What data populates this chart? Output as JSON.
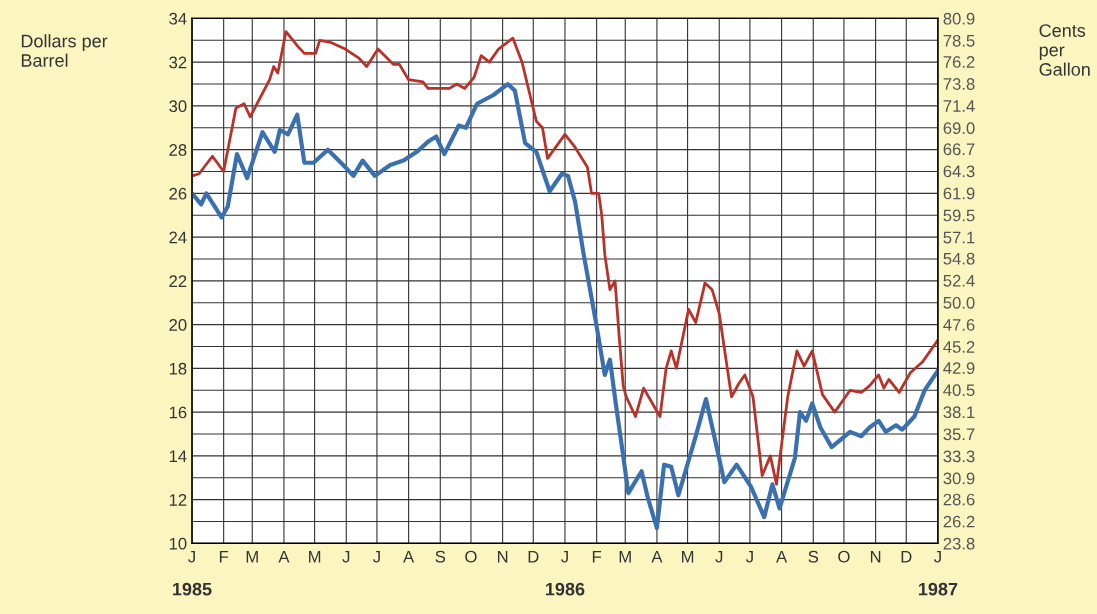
{
  "chart_data": {
    "type": "line",
    "ylabel": "Dollars per\nBarrel",
    "y2label": "Cents\nper\nGallon",
    "grid": true,
    "annotations": [
      "J",
      "F",
      "M",
      "A",
      "M",
      "J",
      "J",
      "A",
      "S",
      "O",
      "N",
      "D",
      "J",
      "F",
      "M",
      "A",
      "M",
      "J",
      "J",
      "A",
      "S",
      "O",
      "N",
      "D",
      "J"
    ],
    "xlim": [
      "1985-01-01",
      "1987-01-01"
    ],
    "xticks": [
      "1985",
      {
        "value": "1985-02",
        "label": null
      },
      {
        "value": "1985-03",
        "label": null
      },
      {
        "value": "1985-04",
        "label": null
      },
      {
        "value": "1985-05",
        "label": null
      },
      {
        "value": "1985-06",
        "label": null
      },
      {
        "value": "1985-07",
        "label": null
      },
      {
        "value": "1985-08",
        "label": null
      },
      {
        "value": "1985-09",
        "label": null
      },
      {
        "value": "1985-10",
        "label": null
      },
      {
        "value": "1985-11",
        "label": null
      },
      {
        "value": "1985-12",
        "label": null
      },
      "1986",
      {
        "value": "1986-02",
        "label": null
      },
      {
        "value": "1986-03",
        "label": null
      },
      {
        "value": "1986-04",
        "label": null
      },
      {
        "value": "1986-05",
        "label": null
      },
      {
        "value": "1986-06",
        "label": null
      },
      {
        "value": "1986-07",
        "label": null
      },
      {
        "value": "1986-08",
        "label": null
      },
      {
        "value": "1986-09",
        "label": null
      },
      {
        "value": "1986-10",
        "label": null
      },
      {
        "value": "1986-11",
        "label": null
      },
      {
        "value": "1986-12",
        "label": null
      },
      "1987"
    ],
    "ylim": [
      10,
      34
    ],
    "yticks": [
      10,
      {
        "value": 11,
        "label": null
      },
      12,
      {
        "value": 13,
        "label": null
      },
      14,
      {
        "value": 15,
        "label": null
      },
      16,
      {
        "value": 17,
        "label": null
      },
      18,
      {
        "value": 19,
        "label": null
      },
      20,
      {
        "value": 21,
        "label": null
      },
      22,
      {
        "value": 23,
        "label": null
      },
      24,
      {
        "value": 25,
        "label": null
      },
      26,
      {
        "value": 27,
        "label": null
      },
      28,
      {
        "value": 29,
        "label": null
      },
      30,
      {
        "value": 31,
        "label": null
      },
      32,
      {
        "value": 33,
        "label": null
      },
      34
    ],
    "y2lim": [
      23.8,
      80.9
    ],
    "y2ticks": [
      23.8,
      26.2,
      28.6,
      30.9,
      33.3,
      35.7,
      38.1,
      40.5,
      42.9,
      45.2,
      47.6,
      {
        "value": 50,
        "label": "50.0"
      },
      52.4,
      54.8,
      57.1,
      59.5,
      61.9,
      64.3,
      66.7,
      {
        "value": 69,
        "label": "69.0"
      },
      71.4,
      73.8,
      76.2,
      78.5,
      80.9
    ],
    "series": [
      {
        "color": "#b8322a",
        "x": [
          "1985-01-01",
          "1985-01-08",
          "1985-01-21",
          "1985-02-01",
          "1985-02-13",
          "1985-02-21",
          "1985-02-27",
          "1985-03-18",
          "1985-03-22",
          "1985-03-26",
          "1985-04-03",
          "1985-04-15",
          "1985-04-21",
          "1985-05-02",
          "1985-05-06",
          "1985-05-17",
          "1985-05-31",
          "1985-06-13",
          "1985-06-21",
          "1985-07-02",
          "1985-07-17",
          "1985-07-23",
          "1985-08-01",
          "1985-08-15",
          "1985-08-20",
          "1985-08-27",
          "1985-09-10",
          "1985-09-17",
          "1985-09-25",
          "1985-10-04",
          "1985-10-11",
          "1985-10-19",
          "1985-10-28",
          "1985-11-11",
          "1985-11-20",
          "1985-12-04",
          "1985-12-10",
          "1985-12-15",
          "1986-01-01",
          "1986-01-11",
          "1986-01-23",
          "1986-01-27",
          "1986-02-03",
          "1986-02-06",
          "1986-02-09",
          "1986-02-14",
          "1986-02-19",
          "1986-02-23",
          "1986-02-27",
          "1986-03-02",
          "1986-03-11",
          "1986-03-19",
          "1986-03-30",
          "1986-04-04",
          "1986-04-10",
          "1986-04-15",
          "1986-04-20",
          "1986-05-02",
          "1986-05-09",
          "1986-05-18",
          "1986-05-25",
          "1986-06-01",
          "1986-06-13",
          "1986-06-20",
          "1986-06-26",
          "1986-07-04",
          "1986-07-13",
          "1986-07-21",
          "1986-07-27",
          "1986-08-07",
          "1986-08-16",
          "1986-08-23",
          "1986-08-31",
          "1986-09-10",
          "1986-09-22",
          "1986-10-07",
          "1986-10-18",
          "1986-10-26",
          "1986-11-04",
          "1986-11-09",
          "1986-11-14",
          "1986-11-24",
          "1986-12-05",
          "1986-12-17",
          "1987-01-01"
        ],
        "values": [
          26.8,
          26.9,
          27.7,
          27.0,
          29.9,
          30.1,
          29.5,
          31.2,
          31.8,
          31.5,
          33.4,
          32.7,
          32.4,
          32.4,
          33.0,
          32.9,
          32.6,
          32.2,
          31.8,
          32.6,
          31.9,
          31.9,
          31.2,
          31.1,
          30.8,
          30.8,
          30.8,
          31.0,
          30.8,
          31.3,
          32.3,
          32.0,
          32.6,
          33.1,
          32.0,
          29.3,
          29.0,
          27.6,
          28.7,
          28.1,
          27.2,
          26.0,
          26.0,
          25.0,
          23.2,
          21.6,
          22.0,
          19.5,
          17.2,
          16.7,
          15.8,
          17.1,
          16.2,
          15.8,
          18.0,
          18.8,
          18.0,
          20.7,
          20.1,
          21.9,
          21.6,
          20.5,
          16.7,
          17.3,
          17.7,
          16.7,
          13.1,
          14.0,
          12.7,
          16.7,
          18.8,
          18.1,
          18.8,
          16.8,
          16.0,
          17.0,
          16.9,
          17.2,
          17.7,
          17.1,
          17.5,
          16.9,
          17.8,
          18.3,
          19.3
        ]
      },
      {
        "color": "#3a6fb0",
        "x": [
          "1985-01-01",
          "1985-01-10",
          "1985-01-15",
          "1985-01-30",
          "1985-02-05",
          "1985-02-14",
          "1985-02-24",
          "1985-03-11",
          "1985-03-23",
          "1985-03-28",
          "1985-04-05",
          "1985-04-14",
          "1985-04-21",
          "1985-04-30",
          "1985-05-14",
          "1985-05-29",
          "1985-06-08",
          "1985-06-17",
          "1985-06-29",
          "1985-07-14",
          "1985-07-27",
          "1985-08-09",
          "1985-08-21",
          "1985-08-28",
          "1985-09-05",
          "1985-09-19",
          "1985-09-26",
          "1985-10-07",
          "1985-10-23",
          "1985-11-06",
          "1985-11-13",
          "1985-11-23",
          "1985-12-04",
          "1985-12-17",
          "1985-12-29",
          "1986-01-04",
          "1986-01-11",
          "1986-01-19",
          "1986-01-31",
          "1986-02-09",
          "1986-02-14",
          "1986-02-20",
          "1986-02-27",
          "1986-03-04",
          "1986-03-17",
          "1986-03-23",
          "1986-04-01",
          "1986-04-08",
          "1986-04-15",
          "1986-04-22",
          "1986-05-09",
          "1986-05-19",
          "1986-05-29",
          "1986-06-06",
          "1986-06-18",
          "1986-07-02",
          "1986-07-15",
          "1986-07-23",
          "1986-07-30",
          "1986-08-14",
          "1986-08-19",
          "1986-08-25",
          "1986-08-31",
          "1986-09-08",
          "1986-09-19",
          "1986-10-07",
          "1986-10-18",
          "1986-10-26",
          "1986-11-04",
          "1986-11-11",
          "1986-11-21",
          "1986-11-27",
          "1986-12-09",
          "1986-12-19",
          "1987-01-01"
        ],
        "values": [
          26.0,
          25.5,
          26.0,
          24.9,
          25.4,
          27.8,
          26.7,
          28.8,
          27.9,
          28.9,
          28.7,
          29.6,
          27.4,
          27.4,
          28.0,
          27.3,
          26.8,
          27.5,
          26.8,
          27.3,
          27.5,
          27.9,
          28.4,
          28.6,
          27.8,
          29.1,
          29.0,
          30.1,
          30.5,
          31.0,
          30.7,
          28.3,
          27.9,
          26.1,
          26.9,
          26.8,
          25.6,
          23.3,
          20.2,
          17.7,
          18.4,
          16.3,
          14.0,
          12.3,
          13.3,
          12.1,
          10.7,
          13.6,
          13.5,
          12.2,
          14.9,
          16.6,
          14.5,
          12.8,
          13.6,
          12.6,
          11.2,
          12.7,
          11.6,
          13.9,
          16.0,
          15.6,
          16.4,
          15.3,
          14.4,
          15.1,
          14.9,
          15.3,
          15.6,
          15.1,
          15.4,
          15.2,
          15.8,
          17.0,
          17.9
        ]
      }
    ]
  }
}
